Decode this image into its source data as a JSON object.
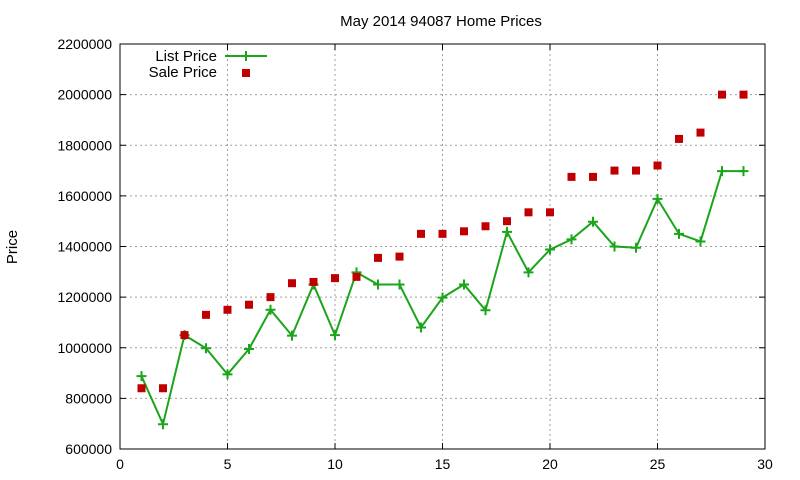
{
  "chart_data": {
    "type": "scatter",
    "title": "May 2014 94087 Home Prices",
    "xlabel": "",
    "ylabel": "Price",
    "xlim": [
      0,
      30
    ],
    "ylim": [
      600000,
      2200000
    ],
    "xticks": [
      0,
      5,
      10,
      15,
      20,
      25,
      30
    ],
    "yticks": [
      600000,
      800000,
      1000000,
      1200000,
      1400000,
      1600000,
      1800000,
      2000000,
      2200000
    ],
    "grid": true,
    "legend": "top-left",
    "series": [
      {
        "name": "List Price",
        "style": "line-with-plus-markers",
        "color": "#1aa51a",
        "x": [
          1,
          2,
          3,
          4,
          5,
          6,
          7,
          8,
          9,
          10,
          11,
          12,
          13,
          14,
          15,
          16,
          17,
          18,
          19,
          20,
          21,
          22,
          23,
          24,
          25,
          26,
          27,
          28,
          29
        ],
        "values": [
          888000,
          698000,
          1050000,
          998000,
          895000,
          995000,
          1150000,
          1048000,
          1250000,
          1050000,
          1298000,
          1250000,
          1250000,
          1080000,
          1198000,
          1250000,
          1148000,
          1458000,
          1298000,
          1388000,
          1428000,
          1498000,
          1400000,
          1395000,
          1588000,
          1450000,
          1420000,
          1698000,
          1698000
        ]
      },
      {
        "name": "Sale Price",
        "style": "square-markers",
        "color": "#c00000",
        "x": [
          1,
          2,
          3,
          4,
          5,
          6,
          7,
          8,
          9,
          10,
          11,
          12,
          13,
          14,
          15,
          16,
          17,
          18,
          19,
          20,
          21,
          22,
          23,
          24,
          25,
          26,
          27,
          28,
          29
        ],
        "values": [
          840000,
          840000,
          1050000,
          1130000,
          1150000,
          1170000,
          1200000,
          1255000,
          1260000,
          1275000,
          1280000,
          1355000,
          1360000,
          1450000,
          1450000,
          1460000,
          1480000,
          1500000,
          1535000,
          1535000,
          1675000,
          1675000,
          1700000,
          1700000,
          1720000,
          1825000,
          1850000,
          2000000,
          2000000
        ]
      }
    ]
  }
}
